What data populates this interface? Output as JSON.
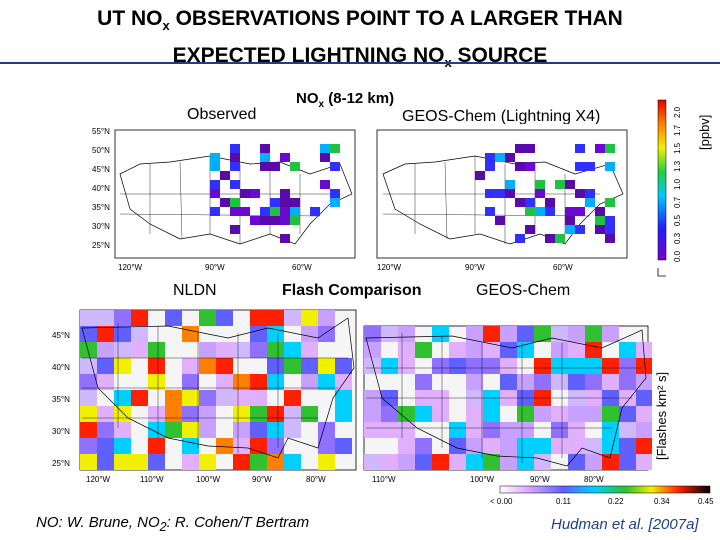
{
  "title_line1": "UT NO",
  "title_sub1": "x",
  "title_line1_rest": " OBSERVATIONS POINT TO A LARGER THAN",
  "title_line2": "EXPECTED LIGHTNING NO",
  "title_sub2": "x",
  "title_line2_rest": " SOURCE",
  "observed_label": "Observed",
  "nox_label": "NO",
  "nox_sub": "x",
  "nox_rest": " (8-12 km)",
  "geos_lightning_label": "GEOS-Chem (Lightning X4)",
  "ppbv_label": "[ppbv]",
  "nldn_label": "NLDN",
  "flash_label": "Flash Comparison",
  "geos_label": "GEOS-Chem",
  "flashes_label": "[Flashes km² s]",
  "footer_left": "NO: W. Brune, NO",
  "footer_left_sub": "2",
  "footer_left_rest": ": R. Cohen/T Bertram",
  "footer_right": "Hudman et al. [2007a]",
  "top_map_lat_ticks": [
    "55°N",
    "50°N",
    "45°N",
    "40°N",
    "35°N",
    "30°N",
    "25°N"
  ],
  "top_map_lon_ticks": [
    "120°W",
    "90°W",
    "60°W"
  ],
  "bottom_map_lat_ticks": [
    "45°N",
    "40°N",
    "35°N",
    "30°N",
    "25°N"
  ],
  "bottom_map_lon_ticks": [
    "120°W",
    "110°W",
    "100°W",
    "90°W",
    "80°W"
  ],
  "nox_colorbar_ticks": [
    "0.0",
    "0.3",
    "0.5",
    "0.7",
    "1.0",
    "1.3",
    "1.5",
    "1.7",
    "2.0"
  ],
  "flash_colorbar_ticks": [
    "< 0.00",
    "0.11",
    "0.22",
    "0.34",
    "0.45"
  ]
}
